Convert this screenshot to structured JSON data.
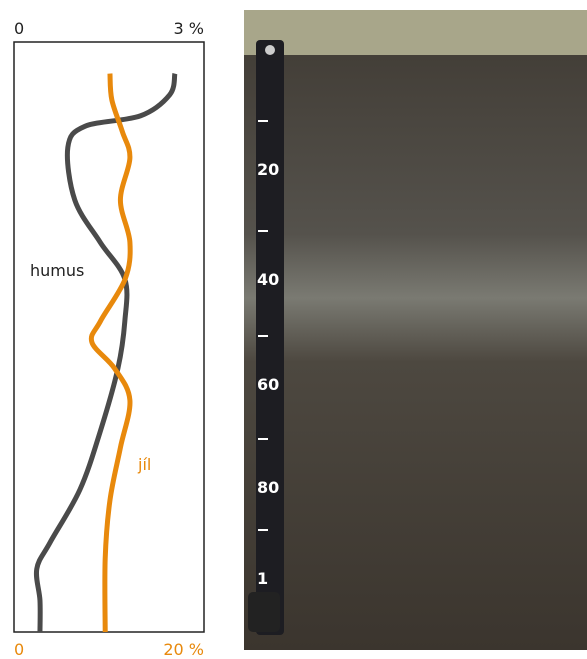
{
  "chart_data": {
    "type": "line",
    "orientation": "vertical",
    "xlim": [
      0,
      3
    ],
    "xticks": [
      0,
      {
        "value": 3,
        "label": "3 %"
      }
    ],
    "x2lim": [
      0,
      20
    ],
    "x2ticks": [
      0,
      {
        "value": 20,
        "label": "20 %"
      }
    ],
    "ylim": [
      0,
      112
    ],
    "series": [
      {
        "name": "humus",
        "color": "#4a4a4a",
        "depth": [
          6,
          10,
          14,
          16,
          20,
          30,
          38,
          45,
          53,
          62,
          74,
          85,
          95,
          100,
          106,
          112
        ],
        "values": [
          2.54,
          2.46,
          2.0,
          1.12,
          0.85,
          0.96,
          1.36,
          1.75,
          1.75,
          1.64,
          1.36,
          1.04,
          0.57,
          0.36,
          0.41,
          0.41
        ]
      },
      {
        "name": "jíl",
        "color": "#e8890c",
        "axis": "x2",
        "depth": [
          6,
          11,
          17,
          22,
          30,
          38,
          45,
          53,
          57,
          62,
          68,
          77,
          87,
          98,
          112
        ],
        "values": [
          10.1,
          10.3,
          11.4,
          12.2,
          11.2,
          12.2,
          11.7,
          9.1,
          8.2,
          10.6,
          12.2,
          11.2,
          10.1,
          9.6,
          9.6
        ]
      }
    ]
  },
  "photo": {
    "ruler_labels": [
      "20",
      "40",
      "60",
      "80",
      "1"
    ]
  }
}
